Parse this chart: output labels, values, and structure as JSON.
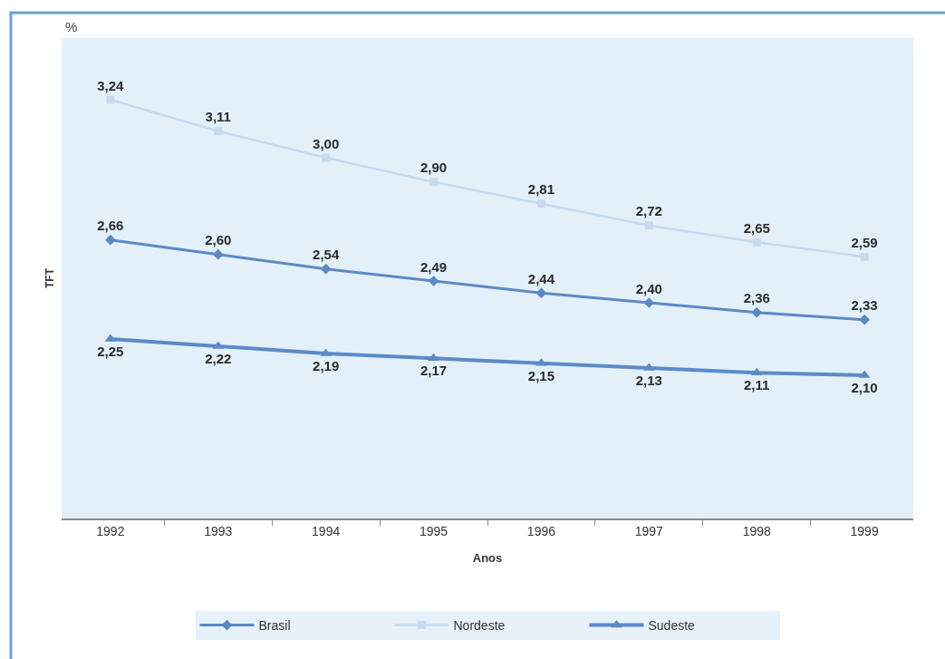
{
  "chart_data": {
    "type": "line",
    "xlabel": "Anos",
    "ylabel": "TFT",
    "annotations": [
      "%"
    ],
    "categories": [
      "1992",
      "1993",
      "1994",
      "1995",
      "1996",
      "1997",
      "1998",
      "1999"
    ],
    "series": [
      {
        "name": "Brasil",
        "color": "#5b89c6",
        "marker": "diamond",
        "values": [
          2.66,
          2.6,
          2.54,
          2.49,
          2.44,
          2.4,
          2.36,
          2.33
        ],
        "value_labels": [
          "2,66",
          "2,60",
          "2,54",
          "2,49",
          "2,44",
          "2,40",
          "2,36",
          "2,33"
        ]
      },
      {
        "name": "Nordeste",
        "color": "#c6daf0",
        "marker": "square",
        "values": [
          3.24,
          3.11,
          3.0,
          2.9,
          2.81,
          2.72,
          2.65,
          2.59
        ],
        "value_labels": [
          "3,24",
          "3,11",
          "3,00",
          "2,90",
          "2,81",
          "2,72",
          "2,65",
          "2,59"
        ]
      },
      {
        "name": "Sudeste",
        "color": "#5b8ac8",
        "marker": "triangle",
        "values": [
          2.25,
          2.22,
          2.19,
          2.17,
          2.15,
          2.13,
          2.11,
          2.1
        ],
        "value_labels": [
          "2,25",
          "2,22",
          "2,19",
          "2,17",
          "2,15",
          "2,13",
          "2,11",
          "2,10"
        ]
      }
    ],
    "tick_labels": "x",
    "legend": "bottom",
    "line_style": "solid"
  }
}
